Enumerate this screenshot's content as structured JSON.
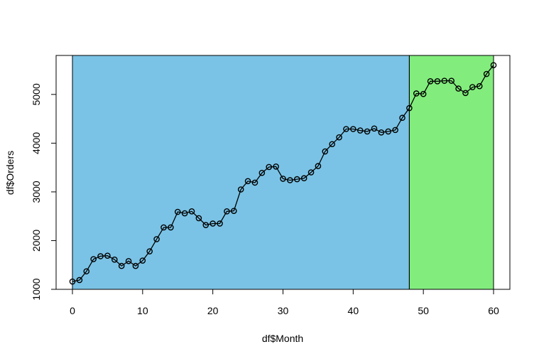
{
  "chart_data": {
    "type": "line",
    "title": "",
    "xlabel": "df$Month",
    "ylabel": "df$Orders",
    "xlim": [
      0,
      60
    ],
    "ylim": [
      1000,
      5800
    ],
    "x_ticks": [
      0,
      10,
      20,
      30,
      40,
      50,
      60
    ],
    "x_tick_labels": [
      "0",
      "10",
      "20",
      "30",
      "40",
      "50",
      "60"
    ],
    "y_ticks": [
      1000,
      2000,
      3000,
      4000,
      5000
    ],
    "y_tick_labels": [
      "1000",
      "2000",
      "3000",
      "4000",
      "5000"
    ],
    "grid": false,
    "legend": "none",
    "regions": [
      {
        "from": 0,
        "to": 48,
        "color": "#7ac3e6"
      },
      {
        "from": 48,
        "to": 60,
        "color": "#82ed7d"
      }
    ],
    "line_color": "#000000",
    "series": [
      {
        "x": [
          0,
          1,
          2,
          3,
          4,
          5,
          6,
          7,
          8,
          9,
          10,
          11,
          12,
          13,
          14,
          15,
          16,
          17,
          18,
          19,
          20,
          21,
          22,
          23,
          24,
          25,
          26,
          27,
          28,
          29,
          30,
          31,
          32,
          33,
          34,
          35,
          36,
          37,
          38,
          39,
          40,
          41,
          42,
          43,
          44,
          45,
          46,
          47,
          48,
          49,
          50,
          51,
          52,
          53,
          54,
          55,
          56,
          57,
          58,
          59,
          60
        ],
        "values": [
          1160,
          1190,
          1370,
          1620,
          1680,
          1690,
          1610,
          1480,
          1580,
          1480,
          1590,
          1780,
          2030,
          2270,
          2270,
          2590,
          2560,
          2600,
          2460,
          2320,
          2350,
          2350,
          2600,
          2610,
          3050,
          3220,
          3190,
          3390,
          3510,
          3520,
          3270,
          3240,
          3260,
          3280,
          3400,
          3530,
          3830,
          3980,
          4120,
          4290,
          4290,
          4260,
          4240,
          4300,
          4220,
          4240,
          4270,
          4520,
          4720,
          5020,
          5010,
          5270,
          5270,
          5280,
          5280,
          5120,
          5030,
          5150,
          5170,
          5420,
          5600
        ]
      }
    ]
  }
}
